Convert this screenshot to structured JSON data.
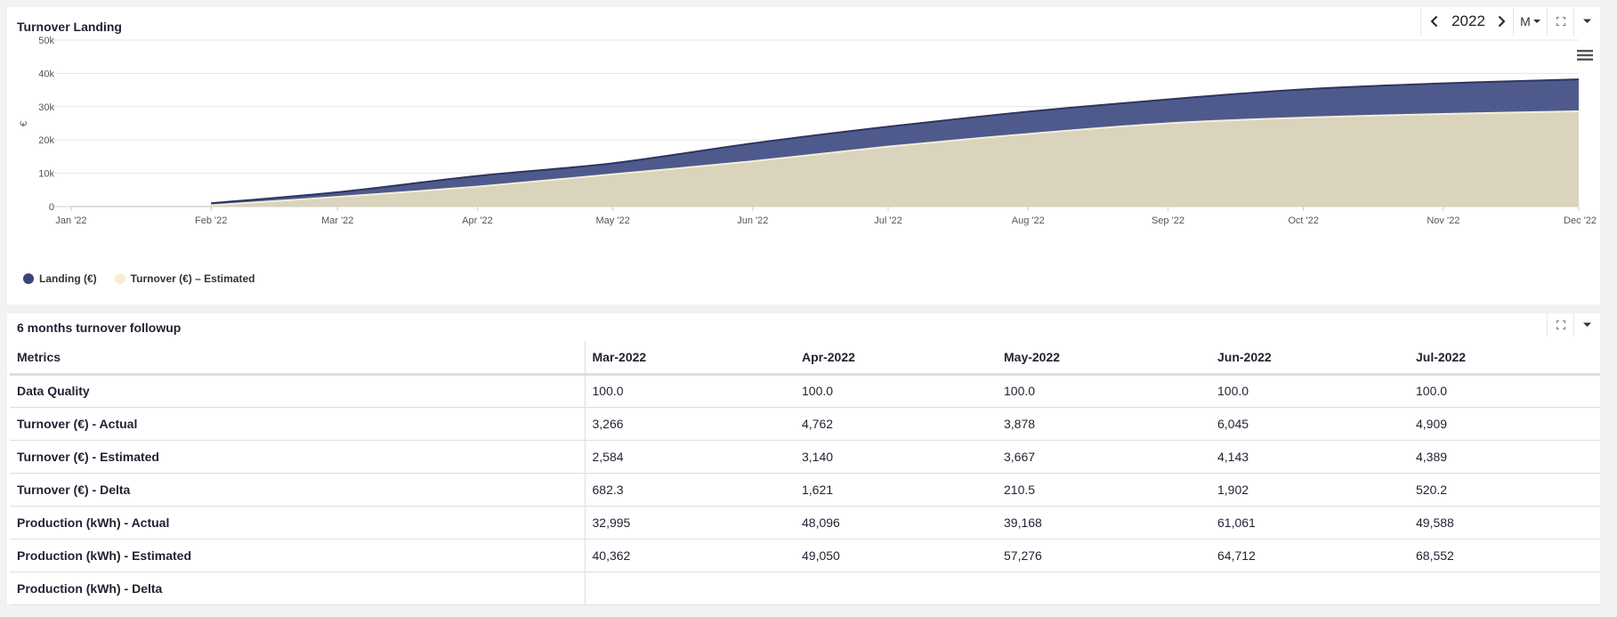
{
  "turnover_panel": {
    "title": "Turnover Landing",
    "year": "2022",
    "granularity": "M",
    "legend": [
      {
        "label": "Landing (€)",
        "color": "#4f5a8c"
      },
      {
        "label": "Turnover (€) – Estimated",
        "color": "#f3ecce"
      }
    ]
  },
  "chart_data": {
    "type": "area",
    "title": "Turnover Landing",
    "xlabel": "",
    "ylabel": "€",
    "categories": [
      "Jan '22",
      "Feb '22",
      "Mar '22",
      "Apr '22",
      "May '22",
      "Jun '22",
      "Jul '22",
      "Aug '22",
      "Sep '22",
      "Oct '22",
      "Nov '22",
      "Dec '22"
    ],
    "x_dates": [
      "2022-01-01",
      "2022-02-01",
      "2022-03-01",
      "2022-04-01",
      "2022-05-01",
      "2022-06-01",
      "2022-07-01",
      "2022-08-01",
      "2022-09-01",
      "2022-10-01",
      "2022-11-01",
      "2022-12-01"
    ],
    "y_ticks": [
      "0",
      "10k",
      "20k",
      "30k",
      "40k",
      "50k"
    ],
    "ylim": [
      0,
      50000
    ],
    "grid": true,
    "legend_position": "bottom-left",
    "series": [
      {
        "name": "Landing (€)",
        "color": "#4f5a8c",
        "line_color": "#2e3560",
        "start_index": 1,
        "values": [
          null,
          1000,
          4300,
          9200,
          13000,
          19000,
          24000,
          28500,
          32200,
          35200,
          37000,
          38200
        ]
      },
      {
        "name": "Turnover (€) – Estimated",
        "color": "#d9d4bb",
        "line_color": "#f3eed8",
        "start_index": 1,
        "values": [
          null,
          400,
          2900,
          6000,
          9700,
          13600,
          18000,
          21800,
          25000,
          26700,
          27800,
          28600
        ]
      }
    ]
  },
  "followup_panel": {
    "title": "6 months turnover followup",
    "columns": [
      "Metrics",
      "Mar-2022",
      "Apr-2022",
      "May-2022",
      "Jun-2022",
      "Jul-2022"
    ],
    "rows": [
      {
        "metric": "Data Quality",
        "values": [
          "100.0",
          "100.0",
          "100.0",
          "100.0",
          "100.0"
        ]
      },
      {
        "metric": "Turnover (€) - Actual",
        "values": [
          "3,266",
          "4,762",
          "3,878",
          "6,045",
          "4,909"
        ]
      },
      {
        "metric": "Turnover (€) - Estimated",
        "values": [
          "2,584",
          "3,140",
          "3,667",
          "4,143",
          "4,389"
        ]
      },
      {
        "metric": "Turnover (€) - Delta",
        "values": [
          "682.3",
          "1,621",
          "210.5",
          "1,902",
          "520.2"
        ]
      },
      {
        "metric": "Production (kWh) - Actual",
        "values": [
          "32,995",
          "48,096",
          "39,168",
          "61,061",
          "49,588"
        ]
      },
      {
        "metric": "Production (kWh) - Estimated",
        "values": [
          "40,362",
          "49,050",
          "57,276",
          "64,712",
          "68,552"
        ]
      },
      {
        "metric": "Production (kWh) - Delta",
        "values": [
          "",
          "",
          "",
          "",
          ""
        ]
      }
    ]
  }
}
